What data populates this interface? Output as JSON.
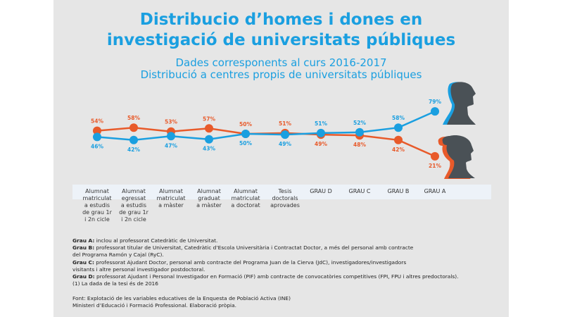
{
  "title_lines": [
    "Distribucio d’homes i dones en",
    "investigació de universitats públiques"
  ],
  "subtitle_lines": [
    "Dades corresponents al curs 2016-2017",
    "Distribució a centres propis de universitats públiques"
  ],
  "colors": {
    "men": "#1a9fe0",
    "women": "#e85a2a",
    "background": "#e6e6e6",
    "silhouette": "#4a5156"
  },
  "icons": [
    "man-silhouette-icon",
    "woman-silhouette-icon"
  ],
  "chart_data": {
    "type": "line",
    "categories": [
      [
        "Alumnat",
        "matriculat",
        "a estudis",
        "de grau 1r",
        "i 2n cicle"
      ],
      [
        "Alumnat",
        "egressat",
        "a estudis",
        "de grau 1r",
        "i 2n cicle"
      ],
      [
        "Alumnat",
        "matriculat",
        "a màster"
      ],
      [
        "Alumnat",
        "graduat",
        "a màster"
      ],
      [
        "Alumnat",
        "matriculat",
        "a doctorat"
      ],
      [
        "Tesis",
        "doctorals",
        "aprovades"
      ],
      [
        "GRAU D"
      ],
      [
        "GRAU C"
      ],
      [
        "GRAU B"
      ],
      [
        "GRAU A"
      ]
    ],
    "series": [
      {
        "key": "women",
        "color": "#e85a2a",
        "values": [
          54,
          58,
          53,
          57,
          50,
          51,
          49,
          48,
          42,
          21
        ]
      },
      {
        "key": "men",
        "color": "#1a9fe0",
        "values": [
          46,
          42,
          47,
          43,
          50,
          49,
          51,
          52,
          58,
          79
        ]
      }
    ],
    "value_suffix": "%",
    "grid": false
  },
  "notes": [
    {
      "label": "Grau A:",
      "text": " inclou al professorat Catedràtic de Universitat."
    },
    {
      "label": "Grau B:",
      "text": " professorat titular de Universitat, Catedràtic d’Escola Universitària i Contractat Doctor, a més del personal amb contracte"
    },
    {
      "label": "",
      "text": "del Programa Ramón y Cajal (RyC)."
    },
    {
      "label": "Grau C:",
      "text": " professorat Ajudant Doctor, personal amb contracte del Programa Juan de la Cierva (JdC), investigadores/investigadors"
    },
    {
      "label": "",
      "text": "visitants i altre personal investigador postdoctoral."
    },
    {
      "label": "Grau D:",
      "text": " professorat Ajudant i Personal Investigador en Formació (PIF) amb contracte de convocatòries competitives (FPI, FPU i altres predoctorals)."
    },
    {
      "label": "",
      "text": "(1) La dada de la tesi és de 2016"
    }
  ],
  "source_lines": [
    "Font: Explotació de les variables educatives de la Enquesta de Població Activa (INE)",
    "Ministeri d’Educació i Formació Professional. Elaboració pròpia."
  ]
}
